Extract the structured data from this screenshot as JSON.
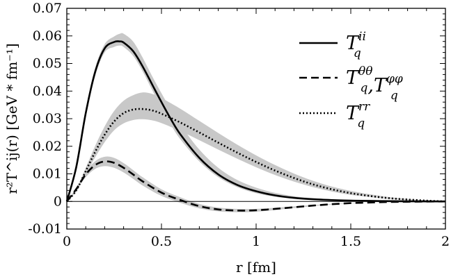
{
  "chart_data": {
    "type": "line",
    "xlabel": "r [fm]",
    "ylabel": "r²T^ij(r) [GeV * fm⁻¹]",
    "xlim": [
      0,
      2
    ],
    "ylim": [
      -0.01,
      0.07
    ],
    "x_ticks": [
      {
        "value": 0,
        "label": "0"
      },
      {
        "value": 0.5,
        "label": "0.5"
      },
      {
        "value": 1,
        "label": "1"
      },
      {
        "value": 1.5,
        "label": "1.5"
      },
      {
        "value": 2,
        "label": "2"
      }
    ],
    "y_ticks": [
      {
        "value": -0.01,
        "label": "-0.01"
      },
      {
        "value": 0,
        "label": "0"
      },
      {
        "value": 0.01,
        "label": "0.01"
      },
      {
        "value": 0.02,
        "label": "0.02"
      },
      {
        "value": 0.03,
        "label": "0.03"
      },
      {
        "value": 0.04,
        "label": "0.04"
      },
      {
        "value": 0.05,
        "label": "0.05"
      },
      {
        "value": 0.06,
        "label": "0.06"
      },
      {
        "value": 0.07,
        "label": "0.07"
      }
    ],
    "grid": false,
    "legend_position": "top-right",
    "band_color": "#c8c8c8",
    "line_color": "#000000",
    "series": [
      {
        "name": "T_q^ii",
        "legend_base": "T",
        "legend_sup": "ii",
        "legend_sub": "q",
        "style": "solid",
        "x": [
          0,
          0.05,
          0.1,
          0.15,
          0.2,
          0.25,
          0.28,
          0.3,
          0.35,
          0.4,
          0.45,
          0.5,
          0.55,
          0.6,
          0.7,
          0.8,
          0.9,
          1.0,
          1.1,
          1.2,
          1.3,
          1.4,
          1.5,
          1.6,
          1.7,
          1.8,
          1.9,
          2.0
        ],
        "y": [
          0,
          0.0125,
          0.032,
          0.047,
          0.0555,
          0.0578,
          0.058,
          0.0576,
          0.0545,
          0.049,
          0.0425,
          0.036,
          0.0298,
          0.0243,
          0.0158,
          0.0098,
          0.006,
          0.0037,
          0.0022,
          0.0013,
          0.0008,
          0.0005,
          0.0003,
          0.0002,
          0.0001,
          5e-05,
          2e-05,
          0
        ],
        "band_lower": [
          0,
          0.0115,
          0.0305,
          0.0455,
          0.054,
          0.056,
          0.0565,
          0.056,
          0.0528,
          0.0472,
          0.0405,
          0.034,
          0.0278,
          0.0225,
          0.0145,
          0.0088,
          0.0052,
          0.003,
          0.0017,
          0.001,
          0.0006,
          0.0003,
          0.0002,
          0.0001,
          5e-05,
          2e-05,
          1e-05,
          0
        ],
        "band_upper": [
          0,
          0.0135,
          0.0335,
          0.0485,
          0.057,
          0.0598,
          0.0608,
          0.0608,
          0.058,
          0.0522,
          0.0455,
          0.0392,
          0.0332,
          0.0278,
          0.0188,
          0.0122,
          0.0078,
          0.005,
          0.0031,
          0.0019,
          0.0012,
          0.0008,
          0.0005,
          0.0003,
          0.0002,
          0.0001,
          4e-05,
          0
        ]
      },
      {
        "name": "T_q^θθ, T_q^φφ",
        "legend_base": "T",
        "legend_sup": "θθ",
        "legend_sub": "q",
        "legend_base2": "T",
        "legend_sup2": "φφ",
        "legend_sub2": "q",
        "style": "dashed",
        "x": [
          0,
          0.05,
          0.1,
          0.15,
          0.2,
          0.25,
          0.3,
          0.35,
          0.4,
          0.5,
          0.6,
          0.7,
          0.8,
          0.9,
          1.0,
          1.1,
          1.2,
          1.3,
          1.4,
          1.5,
          1.6,
          1.7,
          1.8,
          1.9,
          2.0
        ],
        "y": [
          0,
          0.0045,
          0.0098,
          0.0132,
          0.0145,
          0.014,
          0.0122,
          0.0098,
          0.0073,
          0.0032,
          0.0005,
          -0.0017,
          -0.0029,
          -0.0033,
          -0.0032,
          -0.0027,
          -0.0021,
          -0.0015,
          -0.001,
          -0.0006,
          -0.0004,
          -0.0002,
          -0.0001,
          -5e-05,
          0
        ],
        "band_lower": [
          0,
          0.004,
          0.0088,
          0.0118,
          0.0128,
          0.0122,
          0.0105,
          0.0082,
          0.0058,
          0.002,
          -0.0005,
          -0.0025,
          -0.0036,
          -0.0039,
          -0.0037,
          -0.0031,
          -0.0024,
          -0.0017,
          -0.0011,
          -0.0007,
          -0.0004,
          -0.0002,
          -0.0001,
          -5e-05,
          0
        ],
        "band_upper": [
          0,
          0.005,
          0.0108,
          0.0146,
          0.0162,
          0.0158,
          0.0139,
          0.0114,
          0.0088,
          0.0044,
          0.0015,
          -0.0009,
          -0.0022,
          -0.0027,
          -0.0027,
          -0.0023,
          -0.0018,
          -0.0013,
          -0.0009,
          -0.0005,
          -0.0003,
          -0.0002,
          -0.0001,
          -4e-05,
          0
        ]
      },
      {
        "name": "T_q^rr",
        "legend_base": "T",
        "legend_sup": "rr",
        "legend_sub": "q",
        "style": "dotted",
        "x": [
          0,
          0.05,
          0.1,
          0.15,
          0.2,
          0.25,
          0.3,
          0.35,
          0.4,
          0.45,
          0.5,
          0.6,
          0.7,
          0.8,
          0.9,
          1.0,
          1.1,
          1.2,
          1.3,
          1.4,
          1.5,
          1.6,
          1.7,
          1.8,
          1.9,
          2.0
        ],
        "y": [
          0,
          0.004,
          0.011,
          0.018,
          0.0242,
          0.029,
          0.032,
          0.0333,
          0.0335,
          0.033,
          0.0318,
          0.0286,
          0.025,
          0.0213,
          0.0177,
          0.0143,
          0.0112,
          0.0085,
          0.0062,
          0.0044,
          0.003,
          0.002,
          0.0012,
          0.0007,
          0.0003,
          0
        ],
        "band_lower": [
          0,
          0.0036,
          0.0098,
          0.016,
          0.0215,
          0.0258,
          0.0283,
          0.0295,
          0.0298,
          0.0294,
          0.0284,
          0.0255,
          0.0222,
          0.0188,
          0.0155,
          0.0124,
          0.0096,
          0.0072,
          0.0052,
          0.0036,
          0.0024,
          0.0016,
          0.0009,
          0.0005,
          0.0002,
          0
        ],
        "band_upper": [
          0,
          0.0044,
          0.0122,
          0.0202,
          0.0272,
          0.0328,
          0.0365,
          0.0385,
          0.0395,
          0.039,
          0.0375,
          0.0336,
          0.0292,
          0.0248,
          0.0206,
          0.0167,
          0.0132,
          0.0101,
          0.0075,
          0.0054,
          0.0038,
          0.0026,
          0.0016,
          0.0009,
          0.0004,
          0
        ]
      }
    ]
  }
}
